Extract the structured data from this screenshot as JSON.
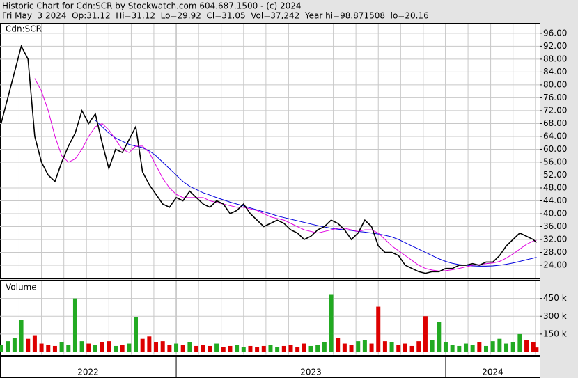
{
  "chart_data": {
    "type": "stock",
    "title": "Historic Chart for Cdn:SCR by Stockwatch.com 604.687.1500 - (c) 2024",
    "subtitle": "Fri May  3 2024  Op:31.12  Hi=31.12  Lo=29.92  Cl=31.05  Vol=37,242  Year hi=98.871508  lo=20.16",
    "x": [
      2022.35,
      2022.375,
      2022.4,
      2022.425,
      2022.45,
      2022.475,
      2022.5,
      2022.525,
      2022.55,
      2022.575,
      2022.6,
      2022.625,
      2022.65,
      2022.675,
      2022.7,
      2022.725,
      2022.75,
      2022.775,
      2022.8,
      2022.825,
      2022.85,
      2022.875,
      2022.9,
      2022.925,
      2022.95,
      2022.975,
      2023,
      2023.025,
      2023.05,
      2023.075,
      2023.1,
      2023.125,
      2023.15,
      2023.175,
      2023.2,
      2023.225,
      2023.25,
      2023.275,
      2023.3,
      2023.325,
      2023.35,
      2023.375,
      2023.4,
      2023.425,
      2023.45,
      2023.475,
      2023.5,
      2023.525,
      2023.55,
      2023.575,
      2023.6,
      2023.625,
      2023.65,
      2023.675,
      2023.7,
      2023.725,
      2023.75,
      2023.775,
      2023.8,
      2023.825,
      2023.85,
      2023.875,
      2023.9,
      2023.925,
      2023.95,
      2023.975,
      2024,
      2024.025,
      2024.05,
      2024.075,
      2024.1,
      2024.125,
      2024.15,
      2024.175,
      2024.2,
      2024.225,
      2024.25,
      2024.275,
      2024.3,
      2024.325,
      2024.337
    ],
    "series": [
      {
        "name": "Cdn:SCR",
        "color": "#000000",
        "values": [
          68,
          76,
          84,
          92,
          88,
          64,
          56,
          52,
          50,
          56,
          61,
          65,
          72,
          68,
          71,
          62,
          54,
          60,
          59,
          63,
          67,
          53,
          49,
          46,
          43,
          42,
          45,
          44,
          47,
          45,
          43,
          42,
          44,
          43,
          40,
          41,
          43,
          40,
          38,
          36,
          37,
          38,
          37,
          35,
          34,
          32,
          33,
          35,
          36,
          38,
          37,
          35,
          32,
          34,
          38,
          36,
          30,
          28,
          28,
          27,
          24,
          23,
          22,
          21.5,
          22,
          22,
          23,
          23,
          24,
          24,
          24.5,
          24,
          25,
          25,
          27,
          30,
          32,
          34,
          33,
          32,
          31.05
        ]
      },
      {
        "color": "#e000e0",
        "values": [
          null,
          null,
          null,
          null,
          null,
          82,
          78,
          72,
          64,
          58,
          56,
          57,
          60,
          64,
          67,
          68,
          66,
          63,
          60,
          59,
          61,
          61,
          59,
          55,
          51,
          48,
          46,
          45,
          45,
          45,
          45,
          44,
          43.5,
          43,
          42.5,
          42,
          42,
          41.5,
          41,
          40,
          39,
          38.5,
          38,
          37,
          36,
          35,
          34.5,
          34,
          34.5,
          35,
          35.5,
          35.5,
          35,
          34.5,
          35,
          35,
          34,
          32,
          30,
          28.5,
          27,
          25.5,
          24,
          23,
          22.5,
          22.2,
          22.3,
          22.6,
          23,
          23.5,
          24,
          24.2,
          24.5,
          24.7,
          25.2,
          26.2,
          27.5,
          29,
          30.5,
          31.5,
          31.8
        ]
      },
      {
        "color": "#0000dd",
        "values": [
          null,
          null,
          null,
          null,
          null,
          null,
          null,
          null,
          null,
          null,
          null,
          null,
          null,
          null,
          69,
          67,
          65,
          63.5,
          62.5,
          61.5,
          61,
          60.5,
          59.5,
          58,
          56,
          54,
          52,
          50,
          48.5,
          47.5,
          46.5,
          45.8,
          45,
          44.3,
          43.6,
          43,
          42.4,
          41.8,
          41.2,
          40.6,
          40,
          39.3,
          38.8,
          38.3,
          37.8,
          37.3,
          36.8,
          36.3,
          35.9,
          35.5,
          35.2,
          35,
          34.8,
          34.5,
          34.3,
          34,
          33.7,
          33.3,
          32.8,
          32,
          31,
          30,
          29,
          28,
          27,
          26,
          25.2,
          24.6,
          24.2,
          24,
          23.8,
          23.7,
          23.7,
          23.8,
          24,
          24.3,
          24.7,
          25.2,
          25.7,
          26.2,
          26.5
        ]
      }
    ],
    "xlim": [
      2022.346,
      2024.349
    ],
    "xticks": [
      2023,
      2024
    ],
    "xgrid": [
      2022.417,
      2022.5,
      2022.583,
      2022.667,
      2022.75,
      2022.833,
      2022.917,
      2023.083,
      2023.167,
      2023.25,
      2023.333,
      2023.417,
      2023.5,
      2023.583,
      2023.667,
      2023.75,
      2023.833,
      2023.917,
      2024.083,
      2024.167,
      2024.25,
      2024.333
    ],
    "year_labels": [
      "2022",
      "2023",
      "2024"
    ],
    "ylim": [
      19.9,
      99
    ],
    "yticks": [
      {
        "value": 24,
        "label": "24.00"
      },
      {
        "value": 28,
        "label": "28.00"
      },
      {
        "value": 32,
        "label": "32.00"
      },
      {
        "value": 36,
        "label": "36.00"
      },
      {
        "value": 40,
        "label": "40.00"
      },
      {
        "value": 44,
        "label": "44.00"
      },
      {
        "value": 48,
        "label": "48.00"
      },
      {
        "value": 52,
        "label": "52.00"
      },
      {
        "value": 56,
        "label": "56.00"
      },
      {
        "value": 60,
        "label": "60.00"
      },
      {
        "value": 64,
        "label": "64.00"
      },
      {
        "value": 68,
        "label": "68.00"
      },
      {
        "value": 72,
        "label": "72.00"
      },
      {
        "value": 76,
        "label": "76.00"
      },
      {
        "value": 80,
        "label": "80.00"
      },
      {
        "value": 84,
        "label": "84.00"
      },
      {
        "value": 88,
        "label": "88.00"
      },
      {
        "value": 92,
        "label": "92.00"
      },
      {
        "value": 96,
        "label": "96.00"
      }
    ],
    "grid": true,
    "volume": {
      "label": "Volume",
      "up_color": "#22aa22",
      "down_color": "#dd0000",
      "values": [
        60000,
        90000,
        120000,
        270000,
        110000,
        140000,
        70000,
        60000,
        50000,
        80000,
        60000,
        450000,
        90000,
        70000,
        60000,
        80000,
        90000,
        50000,
        60000,
        70000,
        290000,
        110000,
        130000,
        80000,
        90000,
        60000,
        70000,
        60000,
        80000,
        50000,
        60000,
        50000,
        70000,
        40000,
        50000,
        60000,
        40000,
        50000,
        40000,
        50000,
        60000,
        40000,
        50000,
        60000,
        40000,
        70000,
        50000,
        60000,
        80000,
        480000,
        120000,
        70000,
        60000,
        90000,
        100000,
        70000,
        380000,
        90000,
        80000,
        60000,
        70000,
        50000,
        90000,
        300000,
        100000,
        250000,
        80000,
        60000,
        50000,
        70000,
        60000,
        80000,
        50000,
        90000,
        110000,
        70000,
        80000,
        150000,
        100000,
        80000,
        37242
      ],
      "ylim": [
        0,
        600000
      ],
      "yticks": [
        {
          "value": 150000,
          "label": "150 k"
        },
        {
          "value": 300000,
          "label": "300 k"
        },
        {
          "value": 450000,
          "label": "450 k"
        }
      ]
    }
  }
}
